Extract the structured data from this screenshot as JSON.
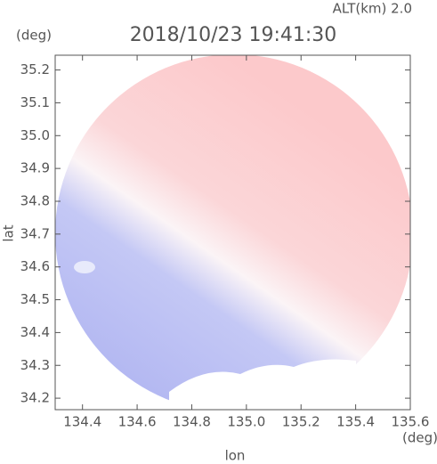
{
  "chart_data": {
    "type": "map",
    "title": "2018/10/23 19:41:30",
    "subtitle": "ALT(km) 2.0",
    "x_label": "lon",
    "y_label": "lat",
    "x_unit": "(deg)",
    "y_unit": "(deg)",
    "xlim": [
      134.3,
      135.6
    ],
    "xticks": [
      134.4,
      134.6,
      134.8,
      135.0,
      135.2,
      135.4,
      135.6
    ],
    "ylim": [
      34.165,
      35.245
    ],
    "yticks": [
      34.2,
      34.3,
      34.4,
      34.5,
      34.6,
      34.7,
      34.8,
      34.9,
      35.0,
      35.1,
      35.2
    ]
  }
}
